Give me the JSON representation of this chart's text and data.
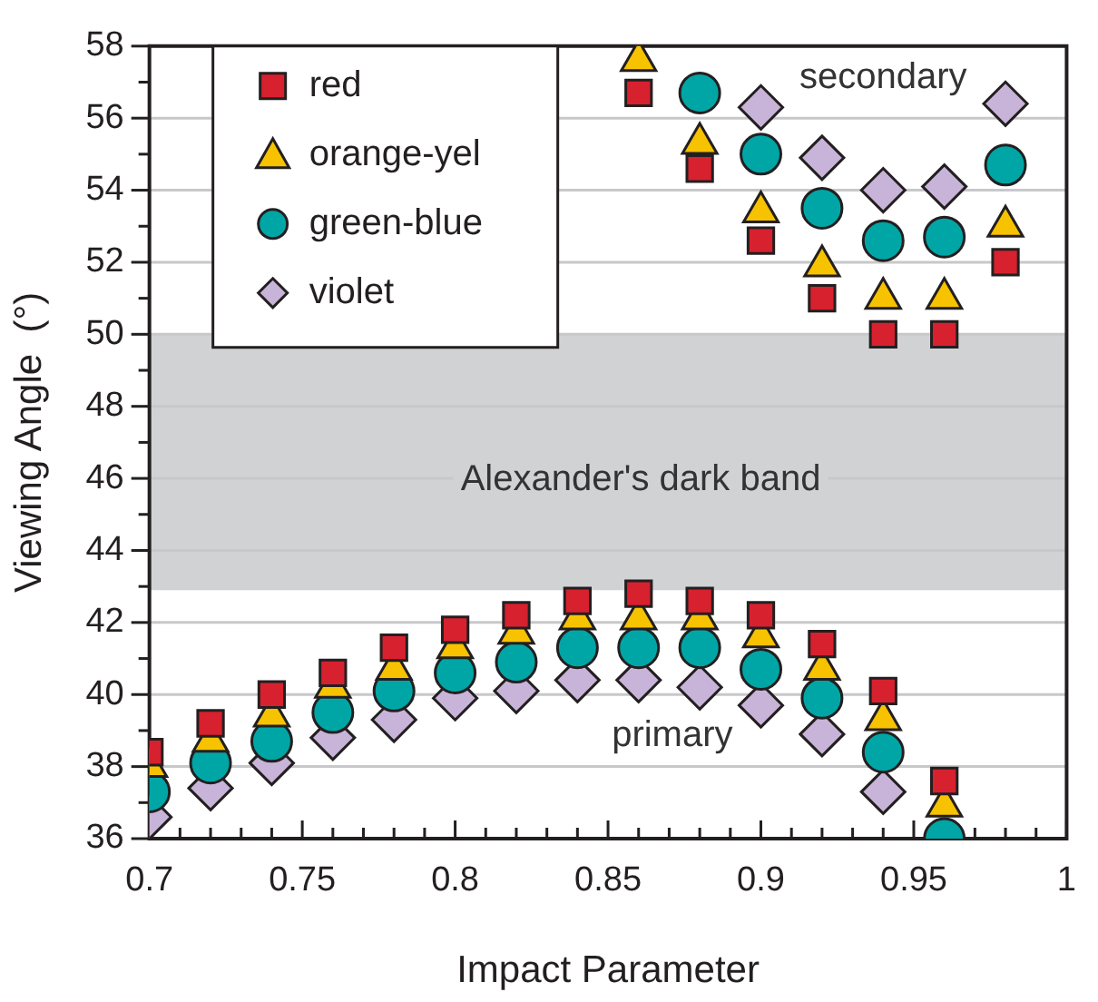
{
  "chart_data": {
    "type": "scatter",
    "xlabel": "Impact Parameter",
    "ylabel": "Viewing Angle  (°)",
    "xlim": [
      0.7,
      1
    ],
    "xticks": [
      0.7,
      {
        "value": 0.71,
        "label": null
      },
      {
        "value": 0.72,
        "label": null
      },
      {
        "value": 0.73,
        "label": null
      },
      {
        "value": 0.74,
        "label": null
      },
      0.75,
      {
        "value": 0.76,
        "label": null
      },
      {
        "value": 0.77,
        "label": null
      },
      {
        "value": 0.78,
        "label": null
      },
      {
        "value": 0.79,
        "label": null
      },
      0.8,
      {
        "value": 0.81,
        "label": null
      },
      {
        "value": 0.82,
        "label": null
      },
      {
        "value": 0.83,
        "label": null
      },
      {
        "value": 0.84,
        "label": null
      },
      0.85,
      {
        "value": 0.86,
        "label": null
      },
      {
        "value": 0.87,
        "label": null
      },
      {
        "value": 0.88,
        "label": null
      },
      {
        "value": 0.89,
        "label": null
      },
      0.9,
      {
        "value": 0.91,
        "label": null
      },
      {
        "value": 0.92,
        "label": null
      },
      {
        "value": 0.93,
        "label": null
      },
      {
        "value": 0.94,
        "label": null
      },
      0.95,
      {
        "value": 0.96,
        "label": null
      },
      {
        "value": 0.97,
        "label": null
      },
      {
        "value": 0.98,
        "label": null
      },
      {
        "value": 0.99,
        "label": null
      },
      1
    ],
    "ylim": [
      36,
      58
    ],
    "yticks": [
      36,
      {
        "value": 37,
        "label": null
      },
      38,
      {
        "value": 39,
        "label": null
      },
      40,
      {
        "value": 41,
        "label": null
      },
      42,
      {
        "value": 43,
        "label": null
      },
      44,
      {
        "value": 45,
        "label": null
      },
      46,
      {
        "value": 47,
        "label": null
      },
      48,
      {
        "value": 49,
        "label": null
      },
      50,
      {
        "value": 51,
        "label": null
      },
      52,
      {
        "value": 53,
        "label": null
      },
      54,
      {
        "value": 55,
        "label": null
      },
      56,
      {
        "value": 57,
        "label": null
      },
      58
    ],
    "grid": "y",
    "legend": "top left",
    "bands": [
      {
        "axis": "y",
        "from": 42.9,
        "to": 50,
        "label": "Alexander's dark band",
        "color": "#d1d2d4"
      }
    ],
    "annotations": [
      "secondary",
      "primary"
    ],
    "series": [
      {
        "name": "red",
        "color": "#d7212e",
        "marker": "square",
        "x": [
          0.7,
          0.72,
          0.74,
          0.76,
          0.78,
          0.8,
          0.82,
          0.84,
          0.86,
          0.88,
          0.9,
          0.92,
          0.94,
          0.96,
          0.86,
          0.88,
          0.9,
          0.92,
          0.94,
          0.96,
          0.98
        ],
        "values": [
          38.4,
          39.2,
          40.0,
          40.6,
          41.3,
          41.8,
          42.2,
          42.6,
          42.8,
          42.6,
          42.2,
          41.4,
          40.1,
          37.6,
          56.7,
          54.6,
          52.6,
          51.0,
          50.0,
          50.0,
          52.0
        ]
      },
      {
        "name": "orange-yel",
        "color": "#f7c200",
        "marker": "triangle",
        "x": [
          0.7,
          0.72,
          0.74,
          0.76,
          0.78,
          0.8,
          0.82,
          0.84,
          0.86,
          0.88,
          0.9,
          0.92,
          0.94,
          0.96,
          0.86,
          0.88,
          0.9,
          0.92,
          0.94,
          0.96,
          0.98
        ],
        "values": [
          38.0,
          38.7,
          39.4,
          40.2,
          40.7,
          41.3,
          41.7,
          42.1,
          42.1,
          42.1,
          41.6,
          40.7,
          39.3,
          36.9,
          57.6,
          55.3,
          53.4,
          51.9,
          51.0,
          51.0,
          53.0
        ]
      },
      {
        "name": "green-blue",
        "color": "#00a6a6",
        "marker": "circle",
        "x": [
          0.7,
          0.72,
          0.74,
          0.76,
          0.78,
          0.8,
          0.82,
          0.84,
          0.86,
          0.88,
          0.9,
          0.92,
          0.94,
          0.96,
          0.88,
          0.9,
          0.92,
          0.94,
          0.96,
          0.98
        ],
        "values": [
          37.3,
          38.1,
          38.7,
          39.5,
          40.1,
          40.6,
          40.9,
          41.3,
          41.3,
          41.3,
          40.7,
          39.9,
          38.4,
          36.0,
          56.7,
          55.0,
          53.5,
          52.6,
          52.7,
          54.7
        ]
      },
      {
        "name": "violet",
        "color": "#c8b4d8",
        "marker": "diamond",
        "x": [
          0.7,
          0.72,
          0.74,
          0.76,
          0.78,
          0.8,
          0.82,
          0.84,
          0.86,
          0.88,
          0.9,
          0.92,
          0.94,
          0.9,
          0.92,
          0.94,
          0.96,
          0.98
        ],
        "values": [
          36.6,
          37.4,
          38.1,
          38.8,
          39.3,
          39.9,
          40.1,
          40.4,
          40.4,
          40.2,
          39.7,
          38.9,
          37.3,
          56.3,
          54.9,
          54.0,
          54.1,
          56.4
        ]
      }
    ]
  }
}
